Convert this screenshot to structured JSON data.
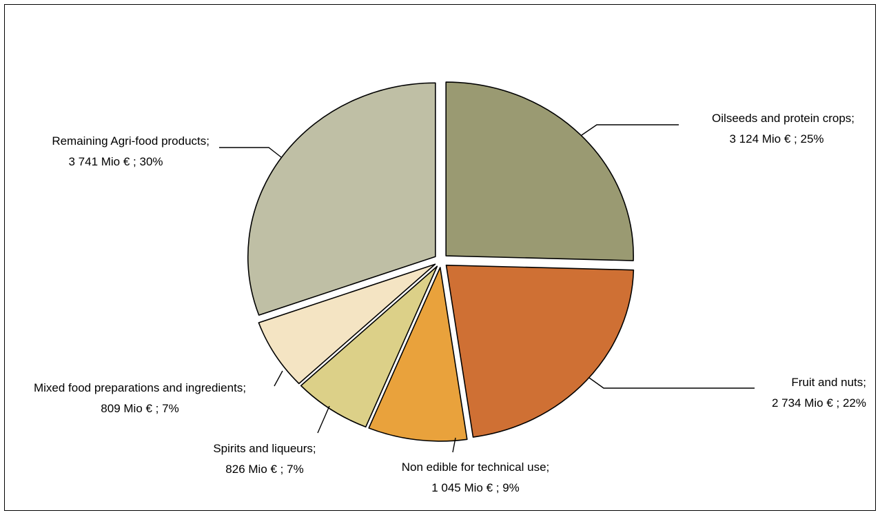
{
  "chart_data": {
    "type": "pie",
    "title": "",
    "legend": "none",
    "start_angle_deg": 0,
    "direction": "clockwise",
    "slices": [
      {
        "category": "Oilseeds and protein crops",
        "value": 3124,
        "value_label": "3 124 Mio € ; 25%",
        "percent": 25,
        "color": "#9a9a72"
      },
      {
        "category": "Fruit and nuts",
        "value": 2734,
        "value_label": "2 734 Mio € ; 22%",
        "percent": 22,
        "color": "#cf7034"
      },
      {
        "category": "Non edible for technical use",
        "value": 1045,
        "value_label": "1 045 Mio € ; 9%",
        "percent": 9,
        "color": "#e9a23c"
      },
      {
        "category": "Spirits and liqueurs",
        "value": 826,
        "value_label": "826 Mio € ; 7%",
        "percent": 7,
        "color": "#dcd088"
      },
      {
        "category": "Mixed food preparations and ingredients",
        "value": 809,
        "value_label": "809 Mio € ; 7%",
        "percent": 7,
        "color": "#f4e4c3"
      },
      {
        "category": "Remaining Agri-food products",
        "value": 3741,
        "value_label": "3 741 Mio € ; 30%",
        "percent": 30,
        "color": "#bfbfa5"
      }
    ]
  }
}
